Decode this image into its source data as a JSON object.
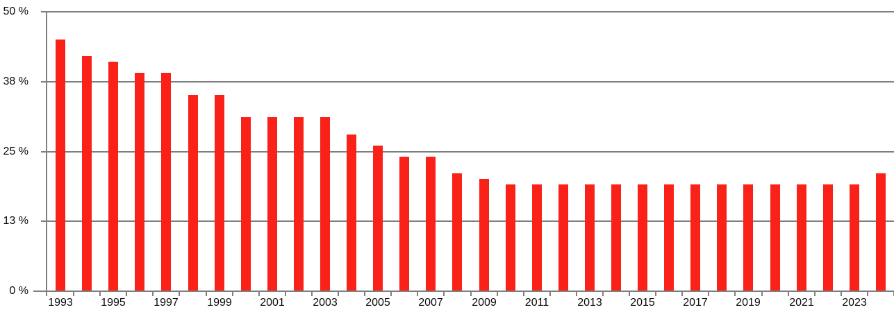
{
  "chart_data": {
    "type": "bar",
    "title": "",
    "xlabel": "",
    "ylabel": "",
    "unit": "%",
    "ylim": [
      0,
      50
    ],
    "grid": true,
    "legend": false,
    "x": [
      "1993",
      "1994",
      "1995",
      "1996",
      "1997",
      "1998",
      "1999",
      "2000",
      "2001",
      "2002",
      "2003",
      "2004",
      "2005",
      "2006",
      "2007",
      "2008",
      "2009",
      "2010",
      "2011",
      "2012",
      "2013",
      "2014",
      "2015",
      "2016",
      "2017",
      "2018",
      "2019",
      "2020",
      "2021",
      "2022",
      "2023",
      "2024"
    ],
    "values": [
      45,
      42,
      41,
      39,
      39,
      35,
      35,
      31,
      31,
      31,
      31,
      28,
      26,
      24,
      24,
      21,
      20,
      19,
      19,
      19,
      19,
      19,
      19,
      19,
      19,
      19,
      19,
      19,
      19,
      19,
      19,
      21
    ],
    "y_ticks": [
      {
        "value": 50,
        "label": "50 %"
      },
      {
        "value": 37.5,
        "label": "38 %"
      },
      {
        "value": 25,
        "label": "25 %"
      },
      {
        "value": 12.5,
        "label": "13 %"
      },
      {
        "value": 0,
        "label": "0 %"
      }
    ],
    "x_tick_labels": [
      "1993",
      "1995",
      "1997",
      "1999",
      "2001",
      "2003",
      "2005",
      "2007",
      "2009",
      "2011",
      "2013",
      "2015",
      "2017",
      "2019",
      "2021",
      "2023"
    ],
    "colors": {
      "bar": "#fa2119",
      "grid": "#7f7f7f",
      "axis": "#7f7f7f",
      "text": "#0a0a0a",
      "background": "#ffffff"
    }
  }
}
